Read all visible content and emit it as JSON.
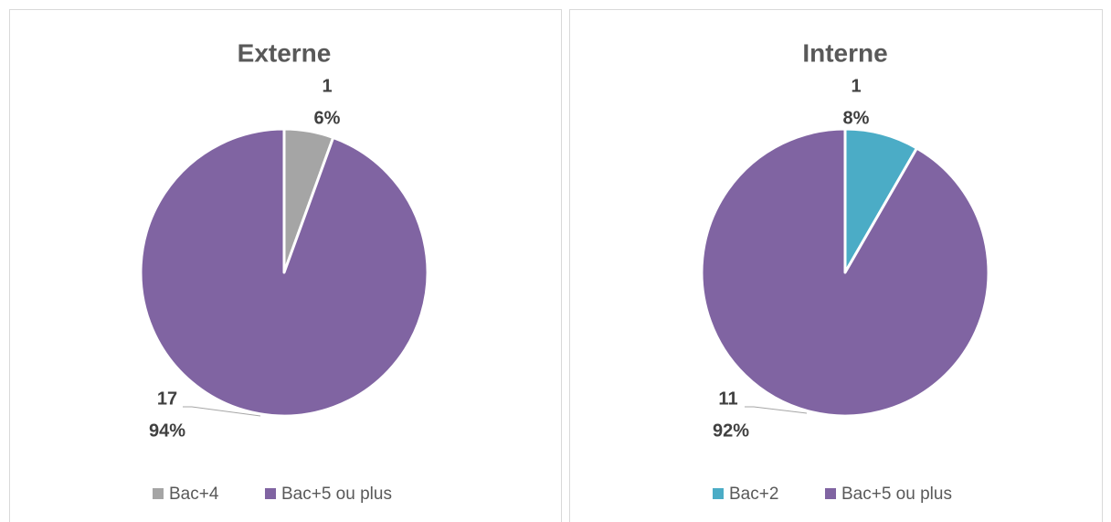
{
  "chart_data": [
    {
      "type": "pie",
      "title": "Externe",
      "categories": [
        "Bac+4",
        "Bac+5 ou plus"
      ],
      "values": [
        1,
        17
      ],
      "percent_labels": [
        "6%",
        "94%"
      ],
      "colors": [
        "#a5a5a5",
        "#8064a2"
      ]
    },
    {
      "type": "pie",
      "title": "Interne",
      "categories": [
        "Bac+2",
        "Bac+5 ou plus"
      ],
      "values": [
        1,
        11
      ],
      "percent_labels": [
        "8%",
        "92%"
      ],
      "colors": [
        "#4bacc6",
        "#8064a2"
      ]
    }
  ]
}
